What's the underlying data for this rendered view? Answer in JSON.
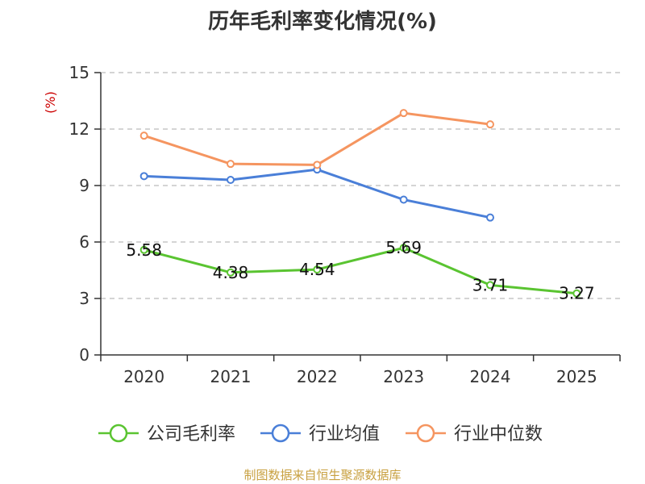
{
  "chart_data": {
    "type": "line",
    "title": "历年毛利率变化情况(%)",
    "ylabel": "(%)",
    "xlabel": "",
    "categories": [
      "2020",
      "2021",
      "2022",
      "2023",
      "2024",
      "2025"
    ],
    "ylim": [
      0,
      15
    ],
    "yticks": [
      0,
      3,
      6,
      9,
      12,
      15
    ],
    "grid": "horizontal-dashed",
    "legend_position": "bottom",
    "series": [
      {
        "name": "公司毛利率",
        "color": "#5ac431",
        "values": [
          5.58,
          4.38,
          4.54,
          5.69,
          3.71,
          3.27
        ],
        "labels": [
          "5.58",
          "4.38",
          "4.54",
          "5.69",
          "3.71",
          "3.27"
        ]
      },
      {
        "name": "行业均值",
        "color": "#4a7fd8",
        "values": [
          9.5,
          9.3,
          9.85,
          8.25,
          7.3,
          null
        ]
      },
      {
        "name": "行业中位数",
        "color": "#f59560",
        "values": [
          11.65,
          10.15,
          10.1,
          12.85,
          12.25,
          null
        ]
      }
    ]
  },
  "source": "制图数据来自恒生聚源数据库"
}
